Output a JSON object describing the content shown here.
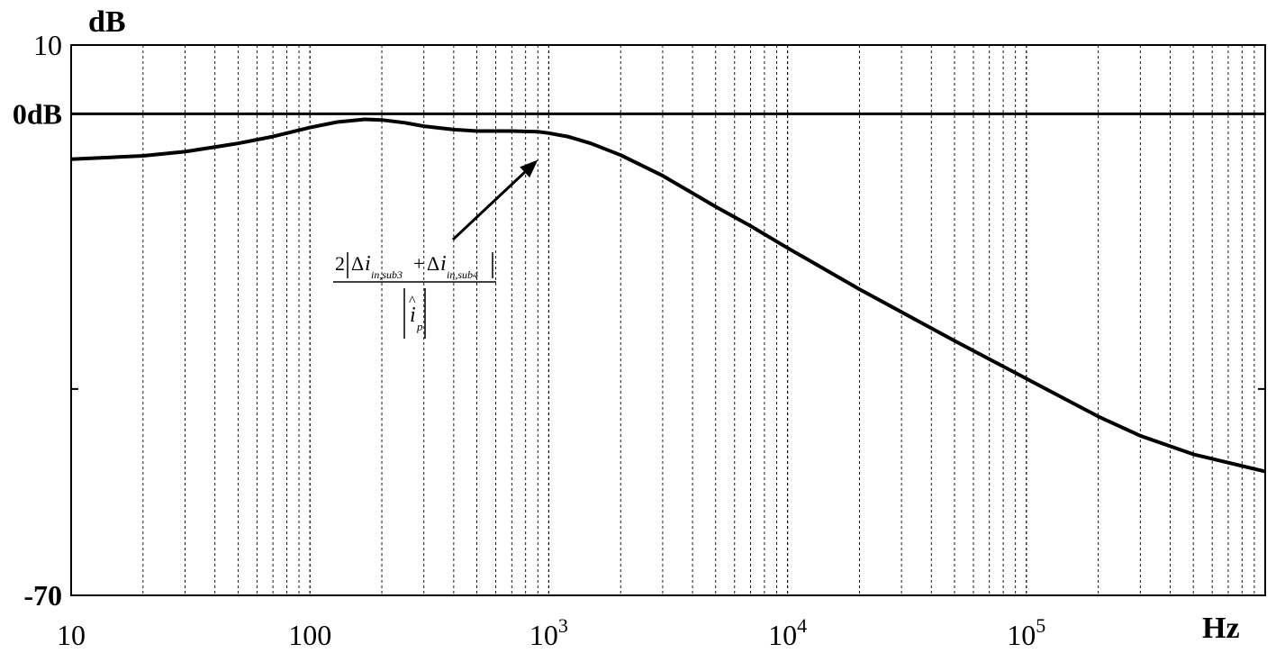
{
  "chart_data": {
    "type": "line",
    "x_scale": "log",
    "xlim": [
      10,
      1000000
    ],
    "ylim": [
      -70,
      10
    ],
    "grid": {
      "x_major": true,
      "x_minor": true,
      "y": false
    },
    "y_unit_label": "dB",
    "x_unit_label": "Hz",
    "y_tick_labels": [
      {
        "value": 10,
        "text": "10",
        "bold": false
      },
      {
        "value": 0,
        "text": "0dB",
        "bold": true
      },
      {
        "value": -70,
        "text": "-70",
        "bold": true
      }
    ],
    "y_unlabeled_ticks": [
      -40
    ],
    "reference_line": {
      "y": 0
    },
    "x_tick_labels": [
      {
        "value": 10,
        "base": "10",
        "exp": ""
      },
      {
        "value": 100,
        "base": "100",
        "exp": ""
      },
      {
        "value": 1000,
        "base": "10",
        "exp": "3"
      },
      {
        "value": 10000,
        "base": "10",
        "exp": "4"
      },
      {
        "value": 100000,
        "base": "10",
        "exp": "5"
      }
    ],
    "series": [
      {
        "x": [
          10,
          20,
          30,
          50,
          70,
          100,
          130,
          170,
          200,
          250,
          300,
          400,
          500,
          700,
          900,
          1000,
          1200,
          1500,
          2000,
          3000,
          5000,
          7000,
          10000,
          20000,
          50000,
          100000,
          200000,
          300000,
          500000,
          1000000
        ],
        "y": [
          -6.6,
          -6.1,
          -5.5,
          -4.3,
          -3.3,
          -2.0,
          -1.2,
          -0.8,
          -0.9,
          -1.3,
          -1.8,
          -2.3,
          -2.5,
          -2.5,
          -2.6,
          -2.8,
          -3.3,
          -4.3,
          -6.0,
          -9.0,
          -13.5,
          -16.3,
          -19.5,
          -25.5,
          -33.0,
          -38.5,
          -44.0,
          -46.8,
          -49.5,
          -52.0
        ]
      }
    ],
    "annotation": {
      "x": 900,
      "y": -6.7,
      "numerator_coef": "2",
      "term1_sub": "in,sub3",
      "term2_sub": "in,sub4",
      "operator": "+",
      "delta_symbol": "Δ",
      "current_symbol": "i",
      "denominator_symbol": "i",
      "denominator_hat": "^",
      "denominator_sub": "p"
    }
  }
}
